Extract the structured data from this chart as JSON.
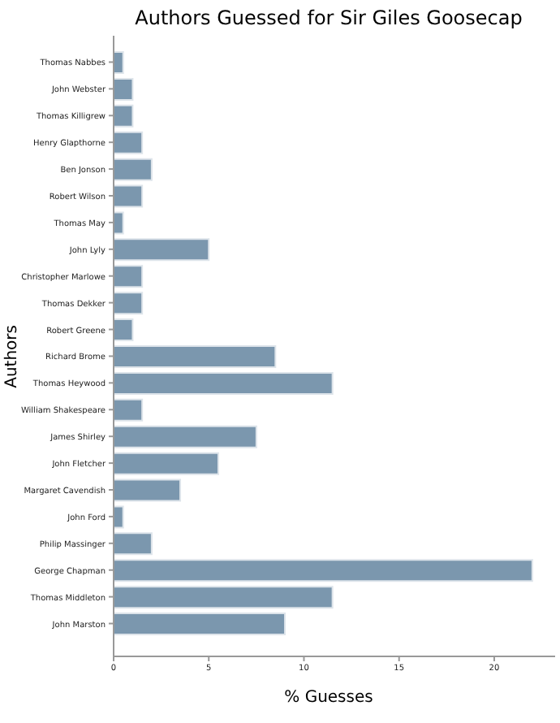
{
  "chart_data": {
    "type": "bar",
    "orientation": "horizontal",
    "title": "Authors Guessed for Sir Giles Goosecap",
    "xlabel": "% Guesses",
    "ylabel": "Authors",
    "categories": [
      "Thomas Nabbes",
      "John Webster",
      "Thomas Killigrew",
      "Henry Glapthorne",
      "Ben Jonson",
      "Robert Wilson",
      "Thomas May",
      "John Lyly",
      "Christopher Marlowe",
      "Thomas Dekker",
      "Robert Greene",
      "Richard Brome",
      "Thomas Heywood",
      "William Shakespeare",
      "James Shirley",
      "John Fletcher",
      "Margaret Cavendish",
      "John Ford",
      "Philip Massinger",
      "George Chapman",
      "Thomas Middleton",
      "John Marston"
    ],
    "values": [
      0.5,
      1,
      1,
      1.5,
      2,
      1.5,
      0.5,
      5,
      1.5,
      1.5,
      1,
      8.5,
      11.5,
      1.5,
      7.5,
      5.5,
      3.5,
      0.5,
      2,
      22,
      11.5,
      9
    ],
    "color": "#7b97ae",
    "xlim": [
      0,
      23.2
    ],
    "xticks": [
      0,
      5,
      10,
      15,
      20
    ],
    "grid": false,
    "legend": false
  }
}
